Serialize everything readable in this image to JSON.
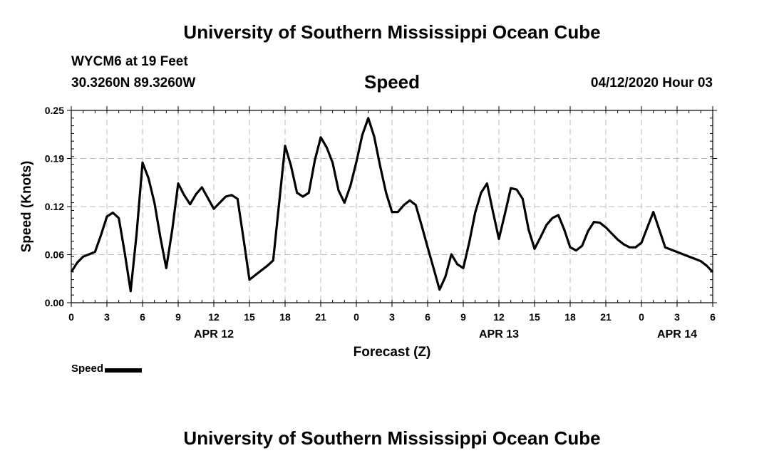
{
  "header": {
    "title": "University of Southern Mississippi Ocean Cube",
    "station": "WYCM6 at 19 Feet",
    "coordinates": "30.3260N 89.3260W",
    "plot_title": "Speed",
    "datetime": "04/12/2020 Hour 03"
  },
  "footer": {
    "title": "University of Southern Mississippi Ocean Cube"
  },
  "legend": {
    "label": "Speed"
  },
  "chart_data": {
    "type": "line",
    "title": "Speed",
    "xlabel": "Forecast (Z)",
    "ylabel": "Speed (Knots)",
    "ylim": [
      0,
      0.25
    ],
    "xlim": [
      0,
      54
    ],
    "x_unit": "hours from APR 12 00Z",
    "y_ticks": [
      "0.00",
      "0.06",
      "0.12",
      "0.19",
      "0.25"
    ],
    "x_ticks": [
      {
        "x": 0,
        "label": "0"
      },
      {
        "x": 3,
        "label": "3"
      },
      {
        "x": 6,
        "label": "6"
      },
      {
        "x": 9,
        "label": "9"
      },
      {
        "x": 12,
        "label": "12"
      },
      {
        "x": 15,
        "label": "15"
      },
      {
        "x": 18,
        "label": "18"
      },
      {
        "x": 21,
        "label": "21"
      },
      {
        "x": 24,
        "label": "0"
      },
      {
        "x": 27,
        "label": "3"
      },
      {
        "x": 30,
        "label": "6"
      },
      {
        "x": 33,
        "label": "9"
      },
      {
        "x": 36,
        "label": "12"
      },
      {
        "x": 39,
        "label": "15"
      },
      {
        "x": 42,
        "label": "18"
      },
      {
        "x": 45,
        "label": "21"
      },
      {
        "x": 48,
        "label": "0"
      },
      {
        "x": 51,
        "label": "3"
      },
      {
        "x": 54,
        "label": "6"
      }
    ],
    "date_labels": [
      {
        "x": 12,
        "label": "APR 12"
      },
      {
        "x": 36,
        "label": "APR 13"
      },
      {
        "x": 51,
        "label": "APR 14"
      }
    ],
    "grid": true,
    "legend_position": "bottom-left",
    "series": [
      {
        "name": "Speed",
        "color": "#000000",
        "points": [
          [
            0,
            0.04
          ],
          [
            0.5,
            0.052
          ],
          [
            1,
            0.06
          ],
          [
            1.5,
            0.063
          ],
          [
            2,
            0.066
          ],
          [
            2.5,
            0.088
          ],
          [
            3,
            0.112
          ],
          [
            3.5,
            0.117
          ],
          [
            4,
            0.11
          ],
          [
            4.5,
            0.065
          ],
          [
            5,
            0.015
          ],
          [
            5.5,
            0.09
          ],
          [
            6,
            0.182
          ],
          [
            6.5,
            0.162
          ],
          [
            7,
            0.13
          ],
          [
            7.5,
            0.085
          ],
          [
            8,
            0.045
          ],
          [
            8.5,
            0.095
          ],
          [
            9,
            0.155
          ],
          [
            9.5,
            0.14
          ],
          [
            10,
            0.128
          ],
          [
            10.5,
            0.141
          ],
          [
            11,
            0.15
          ],
          [
            11.5,
            0.136
          ],
          [
            12,
            0.122
          ],
          [
            12.5,
            0.13
          ],
          [
            13,
            0.138
          ],
          [
            13.5,
            0.14
          ],
          [
            14,
            0.135
          ],
          [
            14.5,
            0.083
          ],
          [
            15,
            0.03
          ],
          [
            15.5,
            0.036
          ],
          [
            16,
            0.042
          ],
          [
            16.5,
            0.048
          ],
          [
            17,
            0.055
          ],
          [
            17.5,
            0.13
          ],
          [
            18,
            0.204
          ],
          [
            18.5,
            0.178
          ],
          [
            19,
            0.143
          ],
          [
            19.5,
            0.138
          ],
          [
            20,
            0.143
          ],
          [
            20.5,
            0.185
          ],
          [
            21,
            0.215
          ],
          [
            21.5,
            0.202
          ],
          [
            22,
            0.182
          ],
          [
            22.5,
            0.146
          ],
          [
            23,
            0.13
          ],
          [
            23.5,
            0.152
          ],
          [
            24,
            0.183
          ],
          [
            24.5,
            0.218
          ],
          [
            25,
            0.24
          ],
          [
            25.5,
            0.216
          ],
          [
            26,
            0.178
          ],
          [
            26.5,
            0.143
          ],
          [
            27,
            0.118
          ],
          [
            27.5,
            0.118
          ],
          [
            28,
            0.127
          ],
          [
            28.5,
            0.133
          ],
          [
            29,
            0.127
          ],
          [
            29.5,
            0.1
          ],
          [
            30,
            0.072
          ],
          [
            30.5,
            0.045
          ],
          [
            31,
            0.017
          ],
          [
            31.5,
            0.034
          ],
          [
            32,
            0.063
          ],
          [
            32.5,
            0.05
          ],
          [
            33,
            0.045
          ],
          [
            33.5,
            0.078
          ],
          [
            34,
            0.117
          ],
          [
            34.5,
            0.143
          ],
          [
            35,
            0.155
          ],
          [
            35.5,
            0.118
          ],
          [
            36,
            0.083
          ],
          [
            36.5,
            0.115
          ],
          [
            37,
            0.149
          ],
          [
            37.5,
            0.147
          ],
          [
            38,
            0.135
          ],
          [
            38.5,
            0.095
          ],
          [
            39,
            0.07
          ],
          [
            39.5,
            0.085
          ],
          [
            40,
            0.101
          ],
          [
            40.5,
            0.11
          ],
          [
            41,
            0.114
          ],
          [
            41.5,
            0.095
          ],
          [
            42,
            0.072
          ],
          [
            42.5,
            0.068
          ],
          [
            43,
            0.074
          ],
          [
            43.5,
            0.093
          ],
          [
            44,
            0.105
          ],
          [
            44.5,
            0.104
          ],
          [
            45,
            0.098
          ],
          [
            45.5,
            0.09
          ],
          [
            46,
            0.082
          ],
          [
            46.5,
            0.076
          ],
          [
            47,
            0.072
          ],
          [
            47.5,
            0.072
          ],
          [
            48,
            0.078
          ],
          [
            48.5,
            0.098
          ],
          [
            49,
            0.118
          ],
          [
            49.5,
            0.095
          ],
          [
            50,
            0.072
          ],
          [
            50.5,
            0.069
          ],
          [
            51,
            0.066
          ],
          [
            51.5,
            0.063
          ],
          [
            52,
            0.06
          ],
          [
            52.5,
            0.057
          ],
          [
            53,
            0.054
          ],
          [
            53.5,
            0.048
          ],
          [
            54,
            0.04
          ]
        ]
      }
    ]
  }
}
